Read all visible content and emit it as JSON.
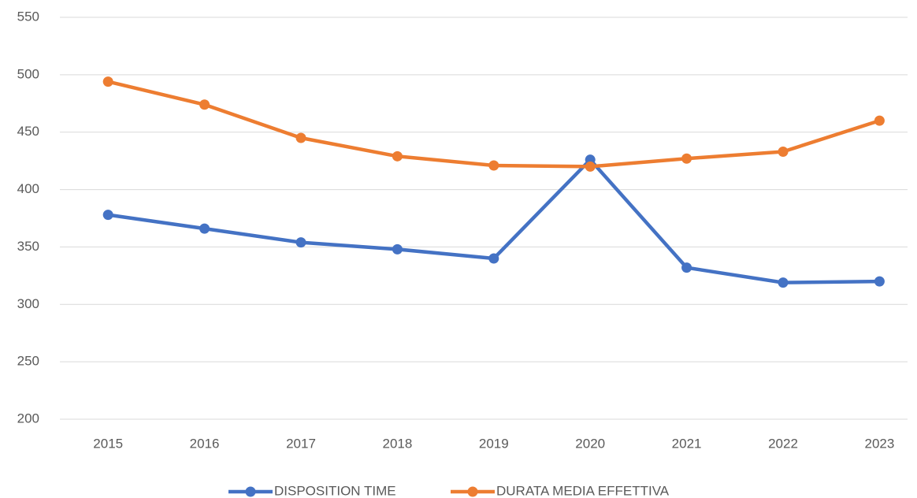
{
  "chart_data": {
    "type": "line",
    "categories": [
      "2015",
      "2016",
      "2017",
      "2018",
      "2019",
      "2020",
      "2021",
      "2022",
      "2023"
    ],
    "series": [
      {
        "name": "DISPOSITION TIME",
        "color": "#4472c4",
        "values": [
          378,
          366,
          354,
          348,
          340,
          426,
          332,
          319,
          320
        ]
      },
      {
        "name": "DURATA MEDIA EFFETTIVA",
        "color": "#ed7d31",
        "values": [
          494,
          474,
          445,
          429,
          421,
          420,
          427,
          433,
          460
        ]
      }
    ],
    "ylim": [
      200,
      550
    ],
    "yticks": [
      200,
      250,
      300,
      350,
      400,
      450,
      500,
      550
    ],
    "grid": true,
    "legend": "bottom"
  }
}
